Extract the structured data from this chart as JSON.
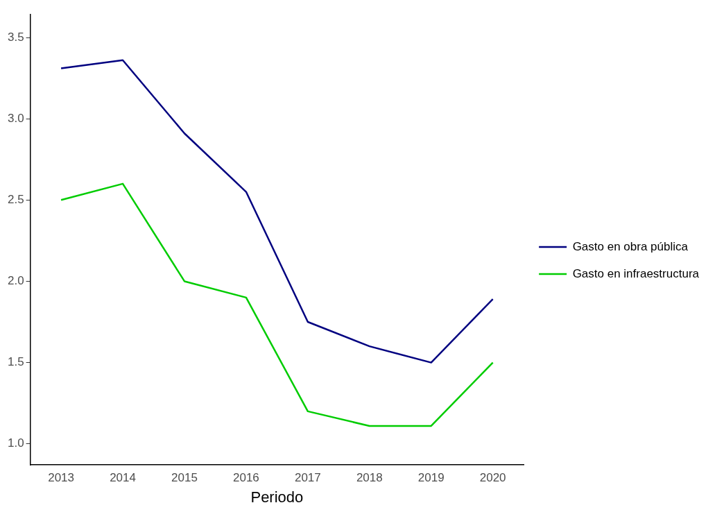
{
  "chart_data": {
    "type": "line",
    "xlabel": "Periodo",
    "categories": [
      "2013",
      "2014",
      "2015",
      "2016",
      "2017",
      "2018",
      "2019",
      "2020"
    ],
    "series": [
      {
        "name": "Gasto en obra pública",
        "color": "#000080",
        "values": [
          3.31,
          3.36,
          2.91,
          2.55,
          1.75,
          1.6,
          1.5,
          1.89
        ]
      },
      {
        "name": "Gasto en infraestructura",
        "color": "#00cc00",
        "values": [
          2.5,
          2.6,
          2.0,
          1.9,
          1.2,
          1.11,
          1.11,
          1.5
        ]
      }
    ],
    "ylim": [
      0.87,
      3.64
    ],
    "yticks": [
      {
        "value": 1,
        "label": "1.0"
      },
      {
        "value": 1.5,
        "label": "1.5"
      },
      {
        "value": 2,
        "label": "2.0"
      },
      {
        "value": 2.5,
        "label": "2.5"
      },
      {
        "value": 3,
        "label": "3.0"
      },
      {
        "value": 3.5,
        "label": "3.5"
      }
    ],
    "grid": false,
    "legend": "right",
    "marker": "none",
    "line_style": "solid"
  }
}
